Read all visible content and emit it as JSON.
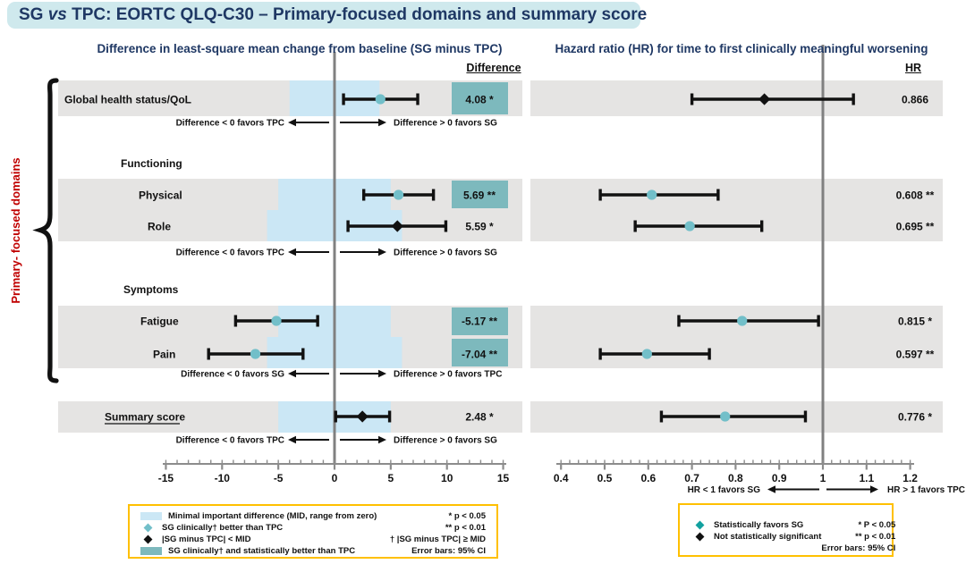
{
  "title": {
    "prefix": "SG ",
    "vs": "vs",
    "rest": " TPC: EORTC QLQ-C30 – Primary-focused domains and summary score"
  },
  "side_label": "Primary- focused domains",
  "colors": {
    "navy": "#1f3864",
    "title_bg": "#cfe9ed",
    "band_grey": "#e5e4e3",
    "mid_blue": "#cbe7f5",
    "teal_fill": "#7db9bd",
    "teal_marker": "#72bfc9",
    "legend_teal": "#12a1a0",
    "red": "#c00000",
    "legend_border": "#ffc000",
    "axis_grey": "#8c8c8c",
    "line_grey": "#808080"
  },
  "chart_data": [
    {
      "type": "forest",
      "panel": "difference",
      "title": "Difference in least-square mean change from baseline (SG minus TPC)",
      "value_column": "Difference",
      "xlim": [
        -15,
        15
      ],
      "axis_ticks": [
        -15,
        -10,
        -5,
        0,
        5,
        10,
        15
      ],
      "axis_tick_labels": [
        "-15",
        "-10",
        "-5",
        "0",
        "5",
        "10",
        "15"
      ],
      "minor_tick_step": 1,
      "reference_line": 0,
      "sections": [
        "Functioning",
        "Symptoms"
      ],
      "rows": [
        {
          "label": "Global health status/QoL",
          "section": "",
          "estimate": 4.08,
          "ci": [
            0.8,
            7.4
          ],
          "display": "4.08 *",
          "marker": "teal-circle",
          "highlight": true,
          "mid": 4
        },
        {
          "label": "Physical",
          "section": "Functioning",
          "estimate": 5.69,
          "ci": [
            2.6,
            8.8
          ],
          "display": "5.69 **",
          "marker": "teal-circle",
          "highlight": true,
          "mid": 5
        },
        {
          "label": "Role",
          "section": "Functioning",
          "estimate": 5.59,
          "ci": [
            1.2,
            9.9
          ],
          "display": "5.59 *",
          "marker": "black-diamond",
          "highlight": false,
          "mid": 6
        },
        {
          "label": "Fatigue",
          "section": "Symptoms",
          "estimate": -5.17,
          "ci": [
            -8.8,
            -1.5
          ],
          "display": "-5.17 **",
          "marker": "teal-circle",
          "highlight": true,
          "mid": 5
        },
        {
          "label": "Pain",
          "section": "Symptoms",
          "estimate": -7.04,
          "ci": [
            -11.2,
            -2.8
          ],
          "display": "-7.04 **",
          "marker": "teal-circle",
          "highlight": true,
          "mid": 6
        },
        {
          "label": "Summary score",
          "section": "",
          "estimate": 2.48,
          "ci": [
            0.1,
            4.9
          ],
          "display": "2.48 *",
          "marker": "black-diamond",
          "highlight": false,
          "mid": 5,
          "underline": true
        }
      ],
      "direction_labels": [
        {
          "left": "Difference < 0 favors TPC",
          "right": "Difference > 0 favors SG"
        },
        {
          "left": "Difference < 0 favors TPC",
          "right": "Difference > 0 favors SG"
        },
        {
          "left": "Difference < 0 favors SG",
          "right": "Difference > 0 favors TPC"
        },
        {
          "left": "Difference < 0 favors TPC",
          "right": "Difference > 0 favors SG"
        }
      ]
    },
    {
      "type": "forest",
      "panel": "hazard_ratio",
      "title": "Hazard ratio (HR) for time to first clinically meaningful worsening",
      "value_column": "HR",
      "xlim": [
        0.4,
        1.2
      ],
      "axis_ticks": [
        0.4,
        0.5,
        0.6,
        0.7,
        0.8,
        0.9,
        1,
        1.1,
        1.2
      ],
      "axis_tick_labels": [
        "0.4",
        "0.5",
        "0.6",
        "0.7",
        "0.8",
        "0.9",
        "1",
        "1.1",
        "1.2"
      ],
      "minor_tick_step": 0.02,
      "reference_line": 1,
      "rows": [
        {
          "label": "Global health status/QoL",
          "estimate": 0.866,
          "ci": [
            0.7,
            1.07
          ],
          "display": "0.866",
          "marker": "black-diamond"
        },
        {
          "label": "Physical",
          "estimate": 0.608,
          "ci": [
            0.49,
            0.76
          ],
          "display": "0.608 **",
          "marker": "teal-circle"
        },
        {
          "label": "Role",
          "estimate": 0.695,
          "ci": [
            0.57,
            0.86
          ],
          "display": "0.695 **",
          "marker": "teal-circle"
        },
        {
          "label": "Fatigue",
          "estimate": 0.815,
          "ci": [
            0.67,
            0.99
          ],
          "display": "0.815 *",
          "marker": "teal-circle"
        },
        {
          "label": "Pain",
          "estimate": 0.597,
          "ci": [
            0.49,
            0.74
          ],
          "display": "0.597 **",
          "marker": "teal-circle"
        },
        {
          "label": "Summary score",
          "estimate": 0.776,
          "ci": [
            0.63,
            0.96
          ],
          "display": "0.776 *",
          "marker": "teal-circle"
        }
      ],
      "favors": {
        "left": "HR < 1 favors SG",
        "right": "HR > 1 favors TPC"
      }
    }
  ],
  "legend_left": {
    "items": [
      {
        "swatch": "mid-blue-rect",
        "label": "Minimal important difference (MID, range from zero)"
      },
      {
        "swatch": "teal-diamond",
        "label": "SG clinically† better than TPC"
      },
      {
        "swatch": "black-diamond",
        "label": "|SG minus TPC| < MID"
      },
      {
        "swatch": "teal-rect",
        "label": "SG clinically† and statistically better than TPC"
      }
    ],
    "notes": [
      "* p < 0.05",
      "** p < 0.01",
      "† |SG minus TPC| ≥ MID",
      "Error bars: 95% CI"
    ]
  },
  "legend_right": {
    "items": [
      {
        "swatch": "teal-diamond",
        "label": "Statistically favors SG"
      },
      {
        "swatch": "black-diamond",
        "label": "Not statistically significant"
      }
    ],
    "notes": [
      "* P < 0.05",
      "** p < 0.01",
      "Error bars: 95% CI"
    ]
  }
}
